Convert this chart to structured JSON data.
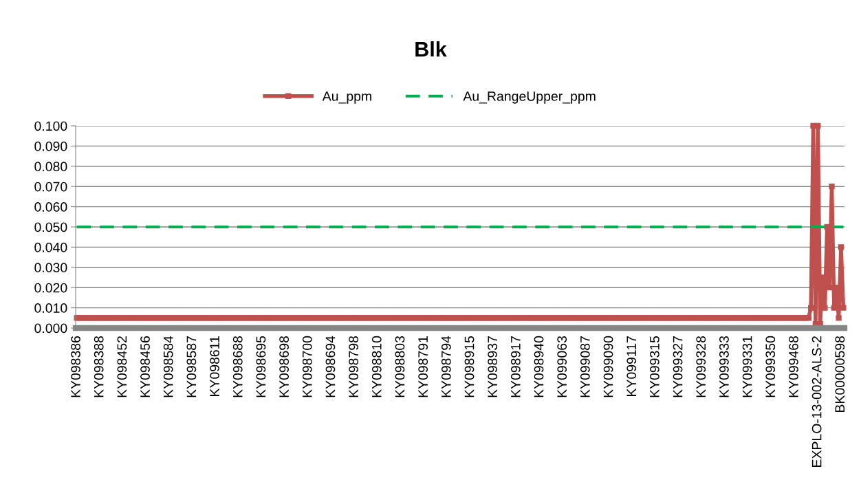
{
  "chart_data": {
    "type": "line",
    "title": "Blk",
    "categories": [
      "KY098386",
      null,
      null,
      null,
      null,
      null,
      null,
      null,
      null,
      null,
      "KY098388",
      null,
      null,
      null,
      null,
      null,
      null,
      null,
      null,
      null,
      "KY098452",
      null,
      null,
      null,
      null,
      null,
      null,
      null,
      null,
      null,
      "KY098456",
      null,
      null,
      null,
      null,
      null,
      null,
      null,
      null,
      null,
      "KY098584",
      null,
      null,
      null,
      null,
      null,
      null,
      null,
      null,
      null,
      "KY098587",
      null,
      null,
      null,
      null,
      null,
      null,
      null,
      null,
      null,
      "KY098611",
      null,
      null,
      null,
      null,
      null,
      null,
      null,
      null,
      null,
      "KY098688",
      null,
      null,
      null,
      null,
      null,
      null,
      null,
      null,
      null,
      "KY098695",
      null,
      null,
      null,
      null,
      null,
      null,
      null,
      null,
      null,
      "KY098698",
      null,
      null,
      null,
      null,
      null,
      null,
      null,
      null,
      null,
      "KY098700",
      null,
      null,
      null,
      null,
      null,
      null,
      null,
      null,
      null,
      "KY098694",
      null,
      null,
      null,
      null,
      null,
      null,
      null,
      null,
      null,
      "KY098798",
      null,
      null,
      null,
      null,
      null,
      null,
      null,
      null,
      null,
      "KY098810",
      null,
      null,
      null,
      null,
      null,
      null,
      null,
      null,
      null,
      "KY098803",
      null,
      null,
      null,
      null,
      null,
      null,
      null,
      null,
      null,
      "KY098791",
      null,
      null,
      null,
      null,
      null,
      null,
      null,
      null,
      null,
      "KY098794",
      null,
      null,
      null,
      null,
      null,
      null,
      null,
      null,
      null,
      "KY098915",
      null,
      null,
      null,
      null,
      null,
      null,
      null,
      null,
      null,
      "KY098937",
      null,
      null,
      null,
      null,
      null,
      null,
      null,
      null,
      null,
      "KY098917",
      null,
      null,
      null,
      null,
      null,
      null,
      null,
      null,
      null,
      "KY098940",
      null,
      null,
      null,
      null,
      null,
      null,
      null,
      null,
      null,
      "KY099063",
      null,
      null,
      null,
      null,
      null,
      null,
      null,
      null,
      null,
      "KY099087",
      null,
      null,
      null,
      null,
      null,
      null,
      null,
      null,
      null,
      "KY099090",
      null,
      null,
      null,
      null,
      null,
      null,
      null,
      null,
      null,
      "KY099117",
      null,
      null,
      null,
      null,
      null,
      null,
      null,
      null,
      null,
      "KY099315",
      null,
      null,
      null,
      null,
      null,
      null,
      null,
      null,
      null,
      "KY099327",
      null,
      null,
      null,
      null,
      null,
      null,
      null,
      null,
      null,
      "KY099328",
      null,
      null,
      null,
      null,
      null,
      null,
      null,
      null,
      null,
      "KY099333",
      null,
      null,
      null,
      null,
      null,
      null,
      null,
      null,
      null,
      "KY099331",
      null,
      null,
      null,
      null,
      null,
      null,
      null,
      null,
      null,
      "KY099350",
      null,
      null,
      null,
      null,
      null,
      null,
      null,
      null,
      null,
      "KY099468",
      null,
      null,
      null,
      null,
      null,
      null,
      null,
      null,
      null,
      "EXPLO-13-002-ALS-2",
      null,
      null,
      null,
      null,
      null,
      null,
      null,
      null,
      null,
      "BK00000598",
      null
    ],
    "series": [
      {
        "name": "Au_ppm",
        "color": "#c0504d",
        "marker": "square",
        "line_style": "solid",
        "values": [
          0.005,
          0.005,
          0.005,
          0.005,
          0.005,
          0.005,
          0.005,
          0.005,
          0.005,
          0.005,
          0.005,
          0.005,
          0.005,
          0.005,
          0.005,
          0.005,
          0.005,
          0.005,
          0.005,
          0.005,
          0.005,
          0.005,
          0.005,
          0.005,
          0.005,
          0.005,
          0.005,
          0.005,
          0.005,
          0.005,
          0.005,
          0.005,
          0.005,
          0.005,
          0.005,
          0.005,
          0.005,
          0.005,
          0.005,
          0.005,
          0.005,
          0.005,
          0.005,
          0.005,
          0.005,
          0.005,
          0.005,
          0.005,
          0.005,
          0.005,
          0.005,
          0.005,
          0.005,
          0.005,
          0.005,
          0.005,
          0.005,
          0.005,
          0.005,
          0.005,
          0.005,
          0.005,
          0.005,
          0.005,
          0.005,
          0.005,
          0.005,
          0.005,
          0.005,
          0.005,
          0.005,
          0.005,
          0.005,
          0.005,
          0.005,
          0.005,
          0.005,
          0.005,
          0.005,
          0.005,
          0.005,
          0.005,
          0.005,
          0.005,
          0.005,
          0.005,
          0.005,
          0.005,
          0.005,
          0.005,
          0.005,
          0.005,
          0.005,
          0.005,
          0.005,
          0.005,
          0.005,
          0.005,
          0.005,
          0.005,
          0.005,
          0.005,
          0.005,
          0.005,
          0.005,
          0.005,
          0.005,
          0.005,
          0.005,
          0.005,
          0.005,
          0.005,
          0.005,
          0.005,
          0.005,
          0.005,
          0.005,
          0.005,
          0.005,
          0.005,
          0.005,
          0.005,
          0.005,
          0.005,
          0.005,
          0.005,
          0.005,
          0.005,
          0.005,
          0.005,
          0.005,
          0.005,
          0.005,
          0.005,
          0.005,
          0.005,
          0.005,
          0.005,
          0.005,
          0.005,
          0.005,
          0.005,
          0.005,
          0.005,
          0.005,
          0.005,
          0.005,
          0.005,
          0.005,
          0.005,
          0.005,
          0.005,
          0.005,
          0.005,
          0.005,
          0.005,
          0.005,
          0.005,
          0.005,
          0.005,
          0.005,
          0.005,
          0.005,
          0.005,
          0.005,
          0.005,
          0.005,
          0.005,
          0.005,
          0.005,
          0.005,
          0.005,
          0.005,
          0.005,
          0.005,
          0.005,
          0.005,
          0.005,
          0.005,
          0.005,
          0.005,
          0.005,
          0.005,
          0.005,
          0.005,
          0.005,
          0.005,
          0.005,
          0.005,
          0.005,
          0.005,
          0.005,
          0.005,
          0.005,
          0.005,
          0.005,
          0.005,
          0.005,
          0.005,
          0.005,
          0.005,
          0.005,
          0.005,
          0.005,
          0.005,
          0.005,
          0.005,
          0.005,
          0.005,
          0.005,
          0.005,
          0.005,
          0.005,
          0.005,
          0.005,
          0.005,
          0.005,
          0.005,
          0.005,
          0.005,
          0.005,
          0.005,
          0.005,
          0.005,
          0.005,
          0.005,
          0.005,
          0.005,
          0.005,
          0.005,
          0.005,
          0.005,
          0.005,
          0.005,
          0.005,
          0.005,
          0.005,
          0.005,
          0.005,
          0.005,
          0.005,
          0.005,
          0.005,
          0.005,
          0.005,
          0.005,
          0.005,
          0.005,
          0.005,
          0.005,
          0.005,
          0.005,
          0.005,
          0.005,
          0.005,
          0.005,
          0.005,
          0.005,
          0.005,
          0.005,
          0.005,
          0.005,
          0.005,
          0.005,
          0.005,
          0.005,
          0.005,
          0.005,
          0.005,
          0.005,
          0.005,
          0.005,
          0.005,
          0.005,
          0.005,
          0.005,
          0.005,
          0.005,
          0.005,
          0.005,
          0.005,
          0.005,
          0.005,
          0.005,
          0.005,
          0.005,
          0.005,
          0.005,
          0.005,
          0.005,
          0.005,
          0.005,
          0.005,
          0.005,
          0.005,
          0.005,
          0.005,
          0.005,
          0.005,
          0.005,
          0.005,
          0.005,
          0.005,
          0.005,
          0.005,
          0.005,
          0.005,
          0.005,
          0.005,
          0.005,
          0.005,
          0.005,
          0.005,
          0.005,
          0.005,
          0.005,
          0.005,
          0.01,
          0.1,
          0.002,
          0.1,
          0.002,
          0.025,
          0.01,
          0.05,
          0.02,
          0.07,
          0.01,
          0.02,
          0.005,
          0.04,
          0.01
        ]
      },
      {
        "name": "Au_RangeUpper_ppm",
        "color": "#00b050",
        "marker": "none",
        "line_style": "dashed",
        "values": [
          0.05,
          0.05,
          0.05,
          0.05,
          0.05,
          0.05,
          0.05,
          0.05,
          0.05,
          0.05,
          0.05,
          0.05,
          0.05,
          0.05,
          0.05,
          0.05,
          0.05,
          0.05,
          0.05,
          0.05,
          0.05,
          0.05,
          0.05,
          0.05,
          0.05,
          0.05,
          0.05,
          0.05,
          0.05,
          0.05,
          0.05,
          0.05,
          0.05,
          0.05,
          0.05,
          0.05,
          0.05,
          0.05,
          0.05,
          0.05,
          0.05,
          0.05,
          0.05,
          0.05,
          0.05,
          0.05,
          0.05,
          0.05,
          0.05,
          0.05,
          0.05,
          0.05,
          0.05,
          0.05,
          0.05,
          0.05,
          0.05,
          0.05,
          0.05,
          0.05,
          0.05,
          0.05,
          0.05,
          0.05,
          0.05,
          0.05,
          0.05,
          0.05,
          0.05,
          0.05,
          0.05,
          0.05,
          0.05,
          0.05,
          0.05,
          0.05,
          0.05,
          0.05,
          0.05,
          0.05,
          0.05,
          0.05,
          0.05,
          0.05,
          0.05,
          0.05,
          0.05,
          0.05,
          0.05,
          0.05,
          0.05,
          0.05,
          0.05,
          0.05,
          0.05,
          0.05,
          0.05,
          0.05,
          0.05,
          0.05,
          0.05,
          0.05,
          0.05,
          0.05,
          0.05,
          0.05,
          0.05,
          0.05,
          0.05,
          0.05,
          0.05,
          0.05,
          0.05,
          0.05,
          0.05,
          0.05,
          0.05,
          0.05,
          0.05,
          0.05,
          0.05,
          0.05,
          0.05,
          0.05,
          0.05,
          0.05,
          0.05,
          0.05,
          0.05,
          0.05,
          0.05,
          0.05,
          0.05,
          0.05,
          0.05,
          0.05,
          0.05,
          0.05,
          0.05,
          0.05,
          0.05,
          0.05,
          0.05,
          0.05,
          0.05,
          0.05,
          0.05,
          0.05,
          0.05,
          0.05,
          0.05,
          0.05,
          0.05,
          0.05,
          0.05,
          0.05,
          0.05,
          0.05,
          0.05,
          0.05,
          0.05,
          0.05,
          0.05,
          0.05,
          0.05,
          0.05,
          0.05,
          0.05,
          0.05,
          0.05,
          0.05,
          0.05,
          0.05,
          0.05,
          0.05,
          0.05,
          0.05,
          0.05,
          0.05,
          0.05,
          0.05,
          0.05,
          0.05,
          0.05,
          0.05,
          0.05,
          0.05,
          0.05,
          0.05,
          0.05,
          0.05,
          0.05,
          0.05,
          0.05,
          0.05,
          0.05,
          0.05,
          0.05,
          0.05,
          0.05,
          0.05,
          0.05,
          0.05,
          0.05,
          0.05,
          0.05,
          0.05,
          0.05,
          0.05,
          0.05,
          0.05,
          0.05,
          0.05,
          0.05,
          0.05,
          0.05,
          0.05,
          0.05,
          0.05,
          0.05,
          0.05,
          0.05,
          0.05,
          0.05,
          0.05,
          0.05,
          0.05,
          0.05,
          0.05,
          0.05,
          0.05,
          0.05,
          0.05,
          0.05,
          0.05,
          0.05,
          0.05,
          0.05,
          0.05,
          0.05,
          0.05,
          0.05,
          0.05,
          0.05,
          0.05,
          0.05,
          0.05,
          0.05,
          0.05,
          0.05,
          0.05,
          0.05,
          0.05,
          0.05,
          0.05,
          0.05,
          0.05,
          0.05,
          0.05,
          0.05,
          0.05,
          0.05,
          0.05,
          0.05,
          0.05,
          0.05,
          0.05,
          0.05,
          0.05,
          0.05,
          0.05,
          0.05,
          0.05,
          0.05,
          0.05,
          0.05,
          0.05,
          0.05,
          0.05,
          0.05,
          0.05,
          0.05,
          0.05,
          0.05,
          0.05,
          0.05,
          0.05,
          0.05,
          0.05,
          0.05,
          0.05,
          0.05,
          0.05,
          0.05,
          0.05,
          0.05,
          0.05,
          0.05,
          0.05,
          0.05,
          0.05,
          0.05,
          0.05,
          0.05,
          0.05,
          0.05,
          0.05,
          0.05,
          0.05,
          0.05,
          0.05,
          0.05,
          0.05,
          0.05,
          0.05,
          0.05,
          0.05,
          0.05,
          0.05,
          0.05,
          0.05,
          0.05,
          0.05,
          0.05,
          0.05,
          0.05,
          0.05,
          0.05,
          0.05,
          0.05,
          0.05,
          0.05
        ]
      }
    ],
    "ylim": [
      0,
      0.1
    ],
    "yticks": [
      {
        "value": 0,
        "label": "0.000"
      },
      {
        "value": 0.01,
        "label": "0.010"
      },
      {
        "value": 0.02,
        "label": "0.020"
      },
      {
        "value": 0.03,
        "label": "0.030"
      },
      {
        "value": 0.04,
        "label": "0.040"
      },
      {
        "value": 0.05,
        "label": "0.050"
      },
      {
        "value": 0.06,
        "label": "0.060"
      },
      {
        "value": 0.07,
        "label": "0.070"
      },
      {
        "value": 0.08,
        "label": "0.080"
      },
      {
        "value": 0.09,
        "label": "0.090"
      },
      {
        "value": 0.1,
        "label": "0.100"
      }
    ],
    "grid": "y",
    "legend": "top"
  }
}
